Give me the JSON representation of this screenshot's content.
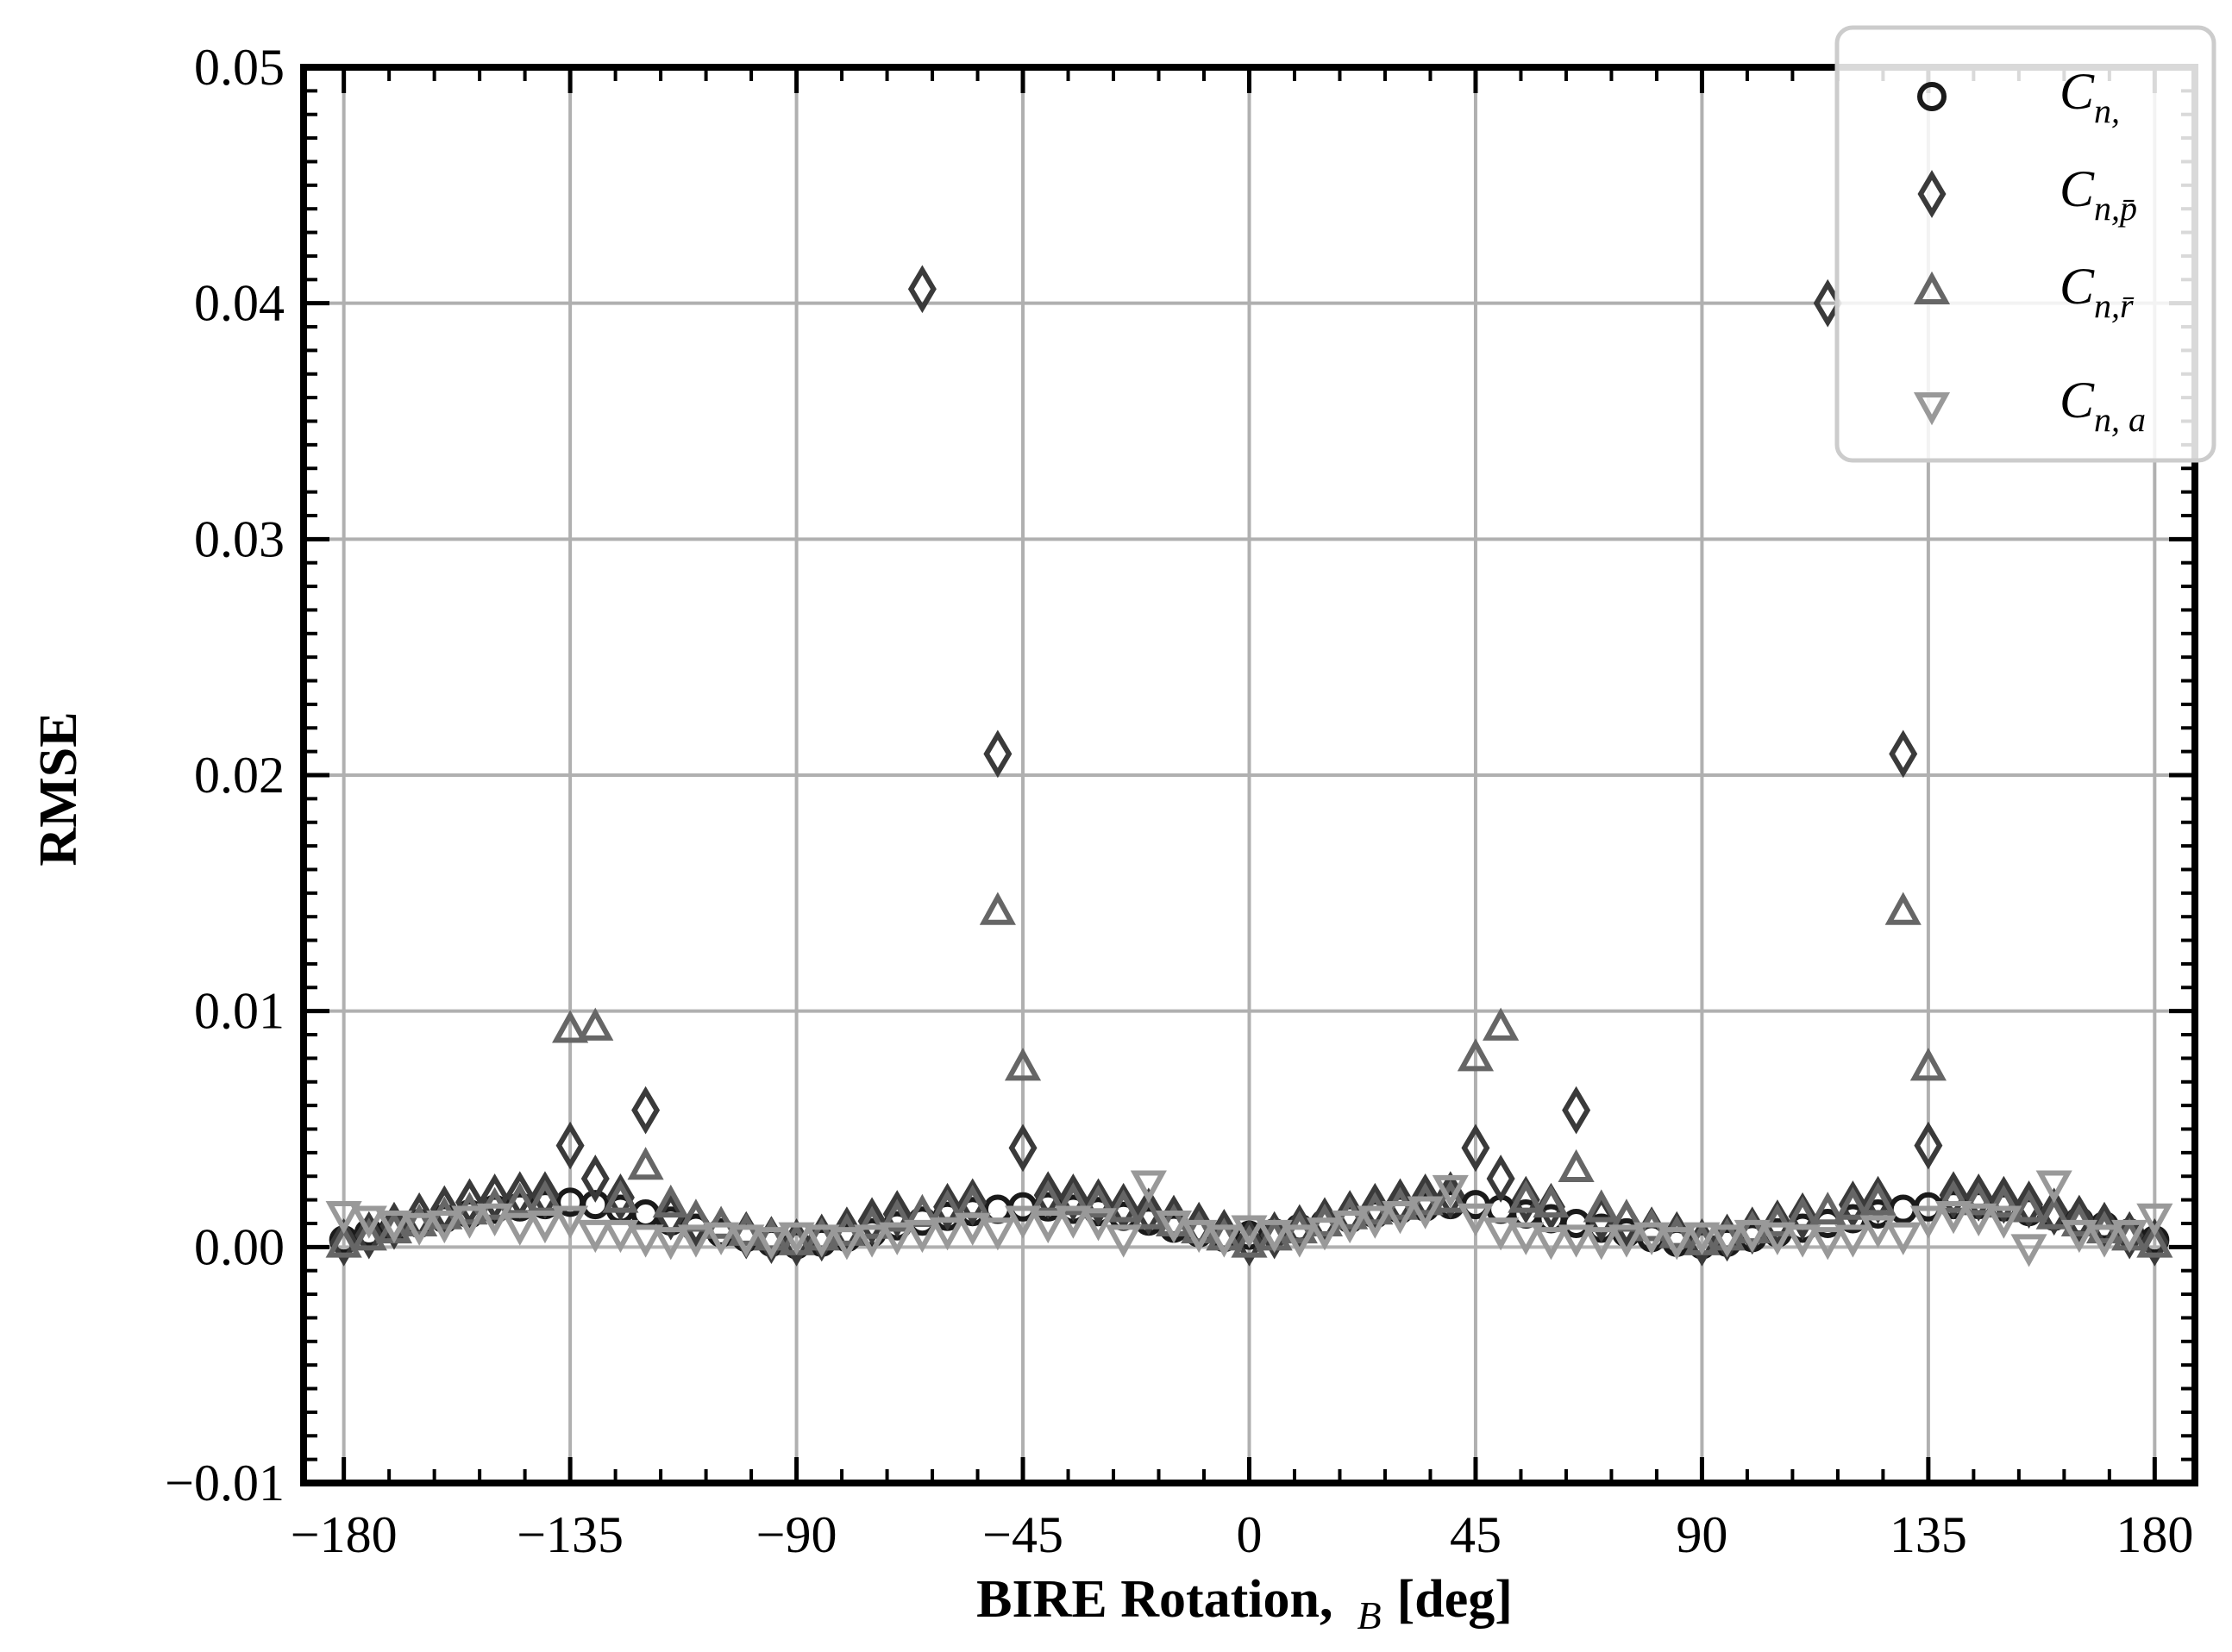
{
  "chart_data": {
    "type": "scatter",
    "xlabel": "BIRE Rotation,",
    "xlabel_symbol": "B",
    "xlabel_unit": "[deg]",
    "ylabel": "RMSE",
    "xlim": [
      -188,
      188
    ],
    "ylim": [
      -0.01,
      0.05
    ],
    "xticks": [
      -180,
      -135,
      -90,
      -45,
      0,
      45,
      90,
      135,
      180
    ],
    "xtick_labels": [
      "−180",
      "−135",
      "−90",
      "−45",
      "0",
      "45",
      "90",
      "135",
      "180"
    ],
    "yticks": [
      -0.01,
      0.0,
      0.01,
      0.02,
      0.03,
      0.04,
      0.05
    ],
    "ytick_labels": [
      "−0.01",
      "0.00",
      "0.01",
      "0.02",
      "0.03",
      "0.04",
      "0.05"
    ],
    "grid": true,
    "legend_position": "top-right",
    "x": [
      -180,
      -175,
      -170,
      -165,
      -160,
      -155,
      -150,
      -145,
      -140,
      -135,
      -130,
      -125,
      -120,
      -115,
      -110,
      -105,
      -100,
      -95,
      -90,
      -85,
      -80,
      -75,
      -70,
      -65,
      -60,
      -55,
      -50,
      -45,
      -40,
      -35,
      -30,
      -25,
      -20,
      -15,
      -10,
      -5,
      0,
      5,
      10,
      15,
      20,
      25,
      30,
      35,
      40,
      45,
      50,
      55,
      60,
      65,
      70,
      75,
      80,
      85,
      90,
      95,
      100,
      105,
      110,
      115,
      120,
      125,
      130,
      135,
      140,
      145,
      150,
      155,
      160,
      165,
      170,
      175,
      180
    ],
    "series": [
      {
        "name": "C",
        "subscript": "n,",
        "marker": "circle",
        "color": "#1a1a1a",
        "values": [
          0.0003,
          0.0006,
          0.0008,
          0.001,
          0.0012,
          0.0014,
          0.0016,
          0.0017,
          0.0018,
          0.0019,
          0.0018,
          0.0016,
          0.0014,
          0.0011,
          0.0008,
          0.0006,
          0.0004,
          0.0002,
          0.0001,
          0.0002,
          0.0004,
          0.0006,
          0.0009,
          0.0011,
          0.0013,
          0.0015,
          0.0016,
          0.0017,
          0.0017,
          0.0016,
          0.0015,
          0.0013,
          0.0011,
          0.0008,
          0.0006,
          0.0004,
          0.0005,
          0.0006,
          0.0008,
          0.001,
          0.0012,
          0.0014,
          0.0016,
          0.0017,
          0.0018,
          0.0018,
          0.0016,
          0.0014,
          0.0012,
          0.001,
          0.0008,
          0.0006,
          0.0004,
          0.0002,
          0.0001,
          0.0002,
          0.0004,
          0.0006,
          0.0008,
          0.001,
          0.0012,
          0.0014,
          0.0016,
          0.0017,
          0.0018,
          0.0018,
          0.0017,
          0.0015,
          0.0013,
          0.0011,
          0.0009,
          0.0006,
          0.0003
        ]
      },
      {
        "name": "C",
        "subscript": "n,p̄",
        "marker": "diamond",
        "color": "#3a3a3a",
        "values": [
          0.0002,
          0.0005,
          0.0009,
          0.0013,
          0.0016,
          0.0019,
          0.0021,
          0.0022,
          0.0022,
          0.0043,
          0.0029,
          0.0021,
          0.0058,
          0.0013,
          0.001,
          0.0007,
          0.0005,
          0.0003,
          0.0002,
          0.0004,
          0.0007,
          0.0011,
          0.0014,
          0.0406,
          0.0017,
          0.0019,
          0.0209,
          0.0042,
          0.0022,
          0.0021,
          0.0019,
          0.0017,
          0.0015,
          0.0012,
          0.0009,
          0.0006,
          0.0002,
          0.0005,
          0.0008,
          0.0011,
          0.0014,
          0.0017,
          0.0019,
          0.0021,
          0.0022,
          0.0042,
          0.0029,
          0.002,
          0.0017,
          0.0058,
          0.0012,
          0.001,
          0.0007,
          0.0005,
          0.0002,
          0.0004,
          0.0007,
          0.001,
          0.0013,
          0.04,
          0.0018,
          0.002,
          0.0209,
          0.0043,
          0.0022,
          0.0021,
          0.002,
          0.0018,
          0.0015,
          0.0012,
          0.0009,
          0.0005,
          0.0002
        ]
      },
      {
        "name": "C",
        "subscript": "n,r̄",
        "marker": "triangle-up",
        "color": "#666666",
        "values": [
          0.0001,
          0.0004,
          0.0007,
          0.001,
          0.0013,
          0.0015,
          0.0017,
          0.0019,
          0.002,
          0.0092,
          0.0093,
          0.002,
          0.0034,
          0.0018,
          0.0012,
          0.0009,
          0.0006,
          0.0004,
          0.0002,
          0.0004,
          0.0006,
          0.0009,
          0.0012,
          0.0014,
          0.0016,
          0.0018,
          0.0142,
          0.0076,
          0.002,
          0.0019,
          0.0018,
          0.0016,
          0.0013,
          0.001,
          0.0007,
          0.0004,
          0.0001,
          0.0004,
          0.0007,
          0.001,
          0.0013,
          0.0015,
          0.0017,
          0.0019,
          0.002,
          0.008,
          0.0093,
          0.002,
          0.0018,
          0.0033,
          0.0016,
          0.0012,
          0.0008,
          0.0005,
          0.0002,
          0.0004,
          0.0007,
          0.001,
          0.0013,
          0.0015,
          0.0017,
          0.0019,
          0.0142,
          0.0076,
          0.002,
          0.0019,
          0.0018,
          0.0016,
          0.0013,
          0.001,
          0.0007,
          0.0004,
          0.0001
        ]
      },
      {
        "name": "C",
        "subscript": "n, a",
        "marker": "triangle-down",
        "color": "#999999",
        "values": [
          0.0014,
          0.0012,
          0.001,
          0.0009,
          0.001,
          0.0012,
          0.0013,
          0.0009,
          0.001,
          0.0012,
          0.0006,
          0.0006,
          0.0004,
          0.0003,
          0.0004,
          0.0005,
          0.0004,
          0.0003,
          0.0005,
          0.0004,
          0.0003,
          0.0004,
          0.0005,
          0.0006,
          0.0007,
          0.0009,
          0.0007,
          0.0012,
          0.001,
          0.0012,
          0.0011,
          0.0004,
          0.0027,
          0.001,
          0.0006,
          0.0004,
          0.0008,
          0.0006,
          0.0004,
          0.0007,
          0.001,
          0.0012,
          0.0014,
          0.0016,
          0.0025,
          0.0013,
          0.0007,
          0.0005,
          0.0003,
          0.0004,
          0.0003,
          0.0004,
          0.0005,
          0.0003,
          0.0005,
          0.0004,
          0.0006,
          0.0005,
          0.0004,
          0.0003,
          0.0004,
          0.0008,
          0.0005,
          0.0012,
          0.0014,
          0.0013,
          0.0012,
          0.0,
          0.0027,
          0.0006,
          0.0004,
          0.0006,
          0.0013
        ]
      }
    ]
  }
}
